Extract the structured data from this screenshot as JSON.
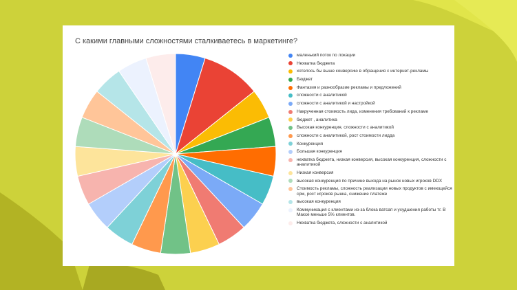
{
  "chart_data": {
    "type": "pie",
    "title": "С какими главными сложностями сталкиваетесь в маркетинге?",
    "legend_position": "right",
    "slices": [
      {
        "label": "маленький поток по локации",
        "value": 1,
        "color": "#4285f4"
      },
      {
        "label": "Нехватка бюджета",
        "value": 2,
        "color": "#ea4335"
      },
      {
        "label": "хотелось бы выше конверсию в обращения с интернет-рекламы",
        "value": 1,
        "color": "#fbbc04"
      },
      {
        "label": "Бюджет",
        "value": 1,
        "color": "#34a853"
      },
      {
        "label": "Фантазия и разнообразие рекламы и предложений",
        "value": 1,
        "color": "#ff6d01"
      },
      {
        "label": "сложности с аналитикой",
        "value": 1,
        "color": "#46bdc6"
      },
      {
        "label": "сложности с аналитикой и настройкой",
        "value": 1,
        "color": "#7baaf7"
      },
      {
        "label": "Накрученная стоимость лида, изменения требований к рекламе",
        "value": 1,
        "color": "#f07b72"
      },
      {
        "label": "бюджет , аналитика",
        "value": 1,
        "color": "#fcd04f"
      },
      {
        "label": "Высокая конкуренция, сложности с аналитикой",
        "value": 1,
        "color": "#71c287"
      },
      {
        "label": "сложности с аналитикой, рост стоимости лидда",
        "value": 1,
        "color": "#ff994d"
      },
      {
        "label": "Конкуренция",
        "value": 1,
        "color": "#7ed1d7"
      },
      {
        "label": "Большая конкуренция",
        "value": 1,
        "color": "#b3cefb"
      },
      {
        "label": "нехватка бюджета, низкая конверсия, высокая конкуренция, сложности с аналитикой",
        "value": 1,
        "color": "#f7b4ae"
      },
      {
        "label": "Низкая конверсия",
        "value": 1,
        "color": "#fde49b"
      },
      {
        "label": "высокая конкуренция по причине выхода на рынок новых игроков DDX",
        "value": 1,
        "color": "#aedcba"
      },
      {
        "label": "Стоимость рекламы, сложность реализации новых продуктов с имеющейся срм, рост игроков рынка, снижение платеже",
        "value": 1,
        "color": "#ffc599"
      },
      {
        "label": "высокая конкуренция",
        "value": 1,
        "color": "#b5e5e8"
      },
      {
        "label": "Коммуникация с клиентами из-за блока ватсап и ухудшения работы тг. В Максе меньше 5% клиентов.",
        "value": 1,
        "color": "#ecf2fe"
      },
      {
        "label": "Нехватка бюджета, сложности с аналитикой",
        "value": 1,
        "color": "#fdeceb"
      }
    ]
  }
}
